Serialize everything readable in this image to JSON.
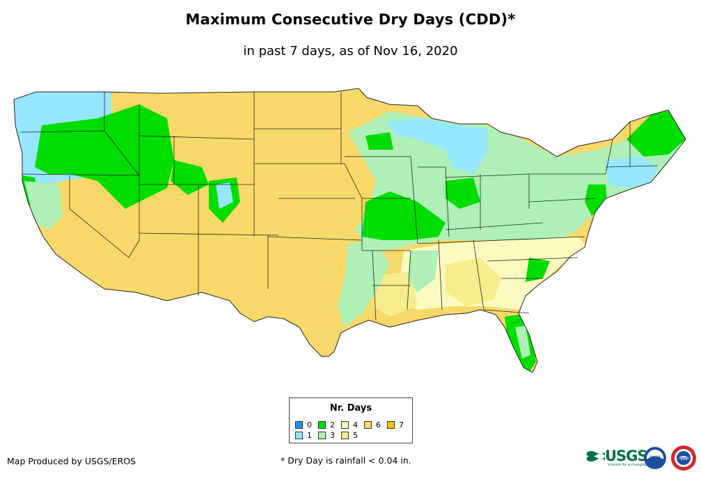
{
  "title": "Maximum Consecutive Dry Days (CDD)*",
  "subtitle": "in past 7 days, as of Nov 16, 2020",
  "legend": {
    "title": "Nr. Days",
    "items": [
      {
        "label": "0",
        "color": "#1e90ff"
      },
      {
        "label": "1",
        "color": "#97e6ff"
      },
      {
        "label": "2",
        "color": "#00dd00"
      },
      {
        "label": "3",
        "color": "#aef0b6"
      },
      {
        "label": "4",
        "color": "#fafac0"
      },
      {
        "label": "5",
        "color": "#f8ec8c"
      },
      {
        "label": "6",
        "color": "#f8d868"
      },
      {
        "label": "7",
        "color": "#f5c400"
      }
    ]
  },
  "footer": {
    "credit": "Map Produced by USGS/EROS",
    "note": "* Dry Day is rainfall < 0.04 in."
  },
  "logos": {
    "usgs": "USGS",
    "usgs_tagline": "science for a changing world",
    "noaa": "noaa",
    "nws": "NWS"
  },
  "map": {
    "icon": "us-map"
  }
}
